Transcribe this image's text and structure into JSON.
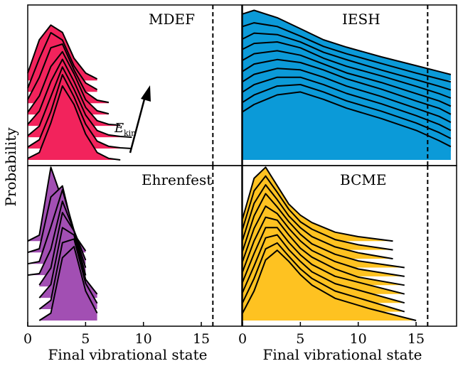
{
  "chart_data": {
    "type": "ridgeline",
    "figure": {
      "ylabel": "Probability",
      "xlabel": "Final vibrational state",
      "grid": false
    },
    "panels": [
      {
        "label": "MDEF",
        "color": "#f2235c",
        "row": 0,
        "col": 0,
        "xlim": [
          0,
          18.5
        ],
        "vline_x": 16,
        "annotation": {
          "text": "E",
          "subscript": "kin"
        },
        "curves": [
          {
            "x": [
              0,
              1,
              2,
              3,
              4,
              5,
              6
            ],
            "y": [
              0.1,
              0.55,
              0.75,
              0.65,
              0.3,
              0.1,
              0.02
            ]
          },
          {
            "x": [
              0,
              1,
              2,
              3,
              4,
              5,
              6
            ],
            "y": [
              0.05,
              0.45,
              0.8,
              0.7,
              0.35,
              0.12,
              0.03
            ]
          },
          {
            "x": [
              0,
              1,
              2,
              3,
              4,
              5,
              6,
              7
            ],
            "y": [
              0.05,
              0.35,
              0.75,
              0.8,
              0.45,
              0.15,
              0.04,
              0.01
            ]
          },
          {
            "x": [
              0,
              1,
              2,
              3,
              4,
              5,
              6,
              7
            ],
            "y": [
              0.03,
              0.25,
              0.65,
              0.85,
              0.55,
              0.2,
              0.05,
              0.01
            ]
          },
          {
            "x": [
              0,
              1,
              2,
              3,
              4,
              5,
              6,
              7,
              8
            ],
            "y": [
              0.02,
              0.2,
              0.6,
              0.9,
              0.6,
              0.25,
              0.07,
              0.02,
              0.01
            ]
          },
          {
            "x": [
              0,
              1,
              2,
              3,
              4,
              5,
              6,
              7,
              8,
              9
            ],
            "y": [
              0.02,
              0.15,
              0.55,
              0.95,
              0.65,
              0.3,
              0.09,
              0.03,
              0.01,
              0.0
            ]
          },
          {
            "x": [
              0,
              1,
              2,
              3,
              4,
              5,
              6,
              7,
              8,
              9
            ],
            "y": [
              0.02,
              0.12,
              0.5,
              1.0,
              0.7,
              0.33,
              0.1,
              0.03,
              0.01,
              0.0
            ]
          },
          {
            "x": [
              0,
              1,
              2,
              3,
              4,
              5,
              6,
              7,
              8
            ],
            "y": [
              0.02,
              0.1,
              0.5,
              1.0,
              0.75,
              0.35,
              0.1,
              0.02,
              0.0
            ]
          }
        ]
      },
      {
        "label": "IESH",
        "color": "#0b9ad8",
        "row": 0,
        "col": 1,
        "xlim": [
          0,
          18.5
        ],
        "vline_x": 16,
        "curves": [
          {
            "x": [
              0,
              1,
              3,
              5,
              7,
              9,
              12,
              15,
              17,
              18
            ],
            "y": [
              0.9,
              0.95,
              0.85,
              0.7,
              0.55,
              0.45,
              0.32,
              0.2,
              0.12,
              0.08
            ]
          },
          {
            "x": [
              0,
              1,
              3,
              5,
              7,
              9,
              12,
              15,
              17,
              18
            ],
            "y": [
              0.85,
              0.9,
              0.85,
              0.72,
              0.58,
              0.48,
              0.35,
              0.22,
              0.14,
              0.1
            ]
          },
          {
            "x": [
              0,
              1,
              3,
              5,
              7,
              9,
              12,
              15,
              17,
              18
            ],
            "y": [
              0.8,
              0.88,
              0.86,
              0.76,
              0.62,
              0.52,
              0.38,
              0.25,
              0.16,
              0.11
            ]
          },
          {
            "x": [
              0,
              1,
              3,
              5,
              7,
              9,
              12,
              15,
              17,
              18
            ],
            "y": [
              0.78,
              0.86,
              0.88,
              0.8,
              0.66,
              0.55,
              0.42,
              0.28,
              0.18,
              0.12
            ]
          },
          {
            "x": [
              0,
              1,
              3,
              5,
              7,
              9,
              12,
              15,
              17,
              18
            ],
            "y": [
              0.75,
              0.84,
              0.88,
              0.82,
              0.7,
              0.58,
              0.45,
              0.3,
              0.2,
              0.13
            ]
          },
          {
            "x": [
              0,
              1,
              3,
              5,
              7,
              9,
              12,
              15,
              17,
              18
            ],
            "y": [
              0.72,
              0.82,
              0.88,
              0.84,
              0.74,
              0.62,
              0.48,
              0.32,
              0.22,
              0.14
            ]
          },
          {
            "x": [
              0,
              1,
              3,
              5,
              7,
              9,
              12,
              15,
              17,
              18
            ],
            "y": [
              0.7,
              0.8,
              0.88,
              0.86,
              0.76,
              0.64,
              0.5,
              0.34,
              0.23,
              0.15
            ]
          },
          {
            "x": [
              0,
              1,
              3,
              5,
              7,
              9,
              12,
              15,
              17,
              18
            ],
            "y": [
              0.68,
              0.78,
              0.88,
              0.88,
              0.78,
              0.66,
              0.52,
              0.36,
              0.24,
              0.16
            ]
          },
          {
            "x": [
              0,
              1,
              3,
              5,
              7,
              9,
              12,
              15,
              17,
              18
            ],
            "y": [
              0.66,
              0.76,
              0.88,
              0.9,
              0.8,
              0.68,
              0.54,
              0.38,
              0.25,
              0.17
            ]
          },
          {
            "x": [
              0,
              1,
              3,
              5,
              7,
              9,
              12,
              15,
              17,
              18
            ],
            "y": [
              0.65,
              0.75,
              0.88,
              0.92,
              0.82,
              0.7,
              0.56,
              0.4,
              0.26,
              0.18
            ]
          }
        ]
      },
      {
        "label": "Ehrenfest",
        "color": "#a24fb3",
        "row": 1,
        "col": 0,
        "xlim": [
          0,
          18.5
        ],
        "vline_x": 16,
        "curves": [
          {
            "x": [
              0,
              1,
              2,
              3,
              4
            ],
            "y": [
              0.0,
              0.08,
              1.0,
              0.55,
              0.05
            ]
          },
          {
            "x": [
              0,
              1,
              2,
              3,
              4,
              5
            ],
            "y": [
              0.0,
              0.05,
              0.75,
              0.9,
              0.25,
              0.02
            ]
          },
          {
            "x": [
              0,
              1,
              2,
              3,
              4,
              5
            ],
            "y": [
              0.0,
              0.03,
              0.5,
              1.0,
              0.45,
              0.05
            ]
          },
          {
            "x": [
              0,
              1,
              2,
              3,
              4,
              5
            ],
            "y": [
              0.0,
              0.02,
              0.35,
              1.0,
              0.6,
              0.1
            ]
          },
          {
            "x": [
              1,
              2,
              3,
              4,
              5
            ],
            "y": [
              0.02,
              0.25,
              1.0,
              0.75,
              0.15
            ]
          },
          {
            "x": [
              1,
              2,
              3,
              4,
              5,
              6
            ],
            "y": [
              0.0,
              0.18,
              0.95,
              0.85,
              0.25,
              0.05
            ]
          },
          {
            "x": [
              1,
              2,
              3,
              4,
              5,
              6
            ],
            "y": [
              0.0,
              0.12,
              0.9,
              0.95,
              0.35,
              0.08
            ]
          },
          {
            "x": [
              1,
              2,
              3,
              4,
              5,
              6
            ],
            "y": [
              0.0,
              0.1,
              0.85,
              1.0,
              0.4,
              0.1
            ]
          }
        ]
      },
      {
        "label": "BCME",
        "color": "#fec221",
        "row": 1,
        "col": 1,
        "xlim": [
          0,
          18.5
        ],
        "vline_x": 16,
        "curves": [
          {
            "x": [
              0,
              1,
              2,
              3,
              4,
              5,
              6,
              8,
              10,
              13
            ],
            "y": [
              0.3,
              0.85,
              1.0,
              0.75,
              0.5,
              0.35,
              0.25,
              0.12,
              0.06,
              0.0
            ]
          },
          {
            "x": [
              0,
              1,
              2,
              3,
              4,
              5,
              6,
              8,
              10,
              13
            ],
            "y": [
              0.28,
              0.8,
              1.0,
              0.78,
              0.55,
              0.38,
              0.28,
              0.14,
              0.07,
              0.0
            ]
          },
          {
            "x": [
              0,
              1,
              2,
              3,
              4,
              5,
              6,
              8,
              10,
              13
            ],
            "y": [
              0.25,
              0.75,
              1.0,
              0.8,
              0.58,
              0.42,
              0.3,
              0.16,
              0.08,
              0.0
            ]
          },
          {
            "x": [
              0,
              1,
              2,
              3,
              4,
              5,
              6,
              8,
              10,
              14
            ],
            "y": [
              0.22,
              0.7,
              1.0,
              0.82,
              0.62,
              0.45,
              0.32,
              0.18,
              0.09,
              0.0
            ]
          },
          {
            "x": [
              0,
              1,
              2,
              3,
              4,
              5,
              6,
              8,
              10,
              14
            ],
            "y": [
              0.2,
              0.65,
              0.95,
              0.85,
              0.65,
              0.48,
              0.35,
              0.2,
              0.1,
              0.0
            ]
          },
          {
            "x": [
              0,
              1,
              2,
              3,
              4,
              5,
              6,
              8,
              10,
              14
            ],
            "y": [
              0.18,
              0.6,
              0.92,
              0.88,
              0.68,
              0.5,
              0.38,
              0.22,
              0.11,
              0.0
            ]
          },
          {
            "x": [
              0,
              1,
              2,
              3,
              4,
              5,
              6,
              8,
              11,
              14
            ],
            "y": [
              0.16,
              0.55,
              0.9,
              0.9,
              0.7,
              0.53,
              0.4,
              0.24,
              0.12,
              0.0
            ]
          },
          {
            "x": [
              0,
              1,
              2,
              3,
              4,
              5,
              6,
              8,
              11,
              14
            ],
            "y": [
              0.14,
              0.5,
              0.88,
              0.92,
              0.72,
              0.56,
              0.42,
              0.26,
              0.13,
              0.0
            ]
          },
          {
            "x": [
              0,
              1,
              2,
              3,
              4,
              5,
              6,
              8,
              11,
              14
            ],
            "y": [
              0.12,
              0.45,
              0.85,
              0.93,
              0.75,
              0.58,
              0.45,
              0.28,
              0.14,
              0.0
            ]
          },
          {
            "x": [
              0,
              1,
              2,
              3,
              4,
              5,
              6,
              8,
              11,
              15
            ],
            "y": [
              0.1,
              0.4,
              0.82,
              0.95,
              0.8,
              0.62,
              0.48,
              0.3,
              0.16,
              0.0
            ]
          }
        ]
      }
    ],
    "xticks": [
      0,
      5,
      10,
      15
    ]
  }
}
